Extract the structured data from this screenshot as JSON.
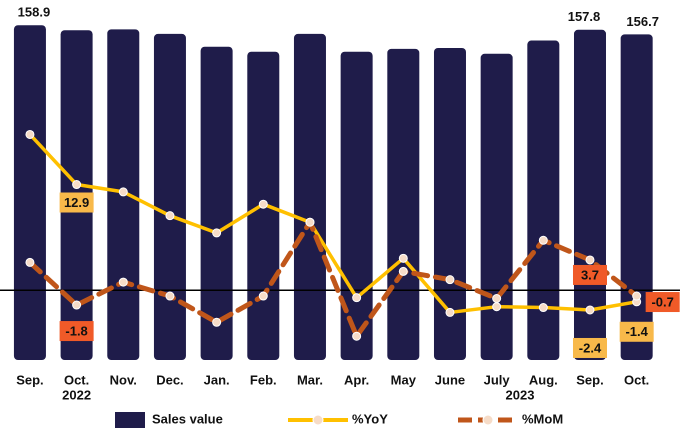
{
  "chart_data": {
    "type": "bar_line",
    "categories": [
      "Sep.",
      "Oct.",
      "Nov.",
      "Dec.",
      "Jan.",
      "Feb.",
      "Mar.",
      "Apr.",
      "May",
      "June",
      "July",
      "Aug.",
      "Sep.",
      "Oct."
    ],
    "annotations": [
      "2022",
      "2023"
    ],
    "ylim": [
      78,
      165
    ],
    "y2lim": [
      -8.5,
      35.4
    ],
    "series": [
      {
        "name": "Sales value",
        "color": "#1f1c4a",
        "values": [
          158.9,
          157.7,
          157.9,
          156.8,
          153.7,
          152.5,
          156.8,
          152.5,
          153.2,
          153.4,
          152.0,
          155.2,
          157.8,
          156.7
        ],
        "value_labels": [
          "158.9",
          null,
          null,
          null,
          null,
          null,
          null,
          null,
          null,
          null,
          null,
          null,
          "157.8",
          "156.7"
        ]
      },
      {
        "name": "%YoY",
        "color": "#ffc000",
        "axis": "y2",
        "values": [
          19.0,
          12.9,
          12.0,
          9.1,
          7.0,
          10.5,
          8.3,
          -0.9,
          3.9,
          -2.7,
          -2.0,
          -2.1,
          -2.4,
          -1.4
        ],
        "value_labels": [
          null,
          "12.9",
          null,
          null,
          null,
          null,
          null,
          null,
          null,
          null,
          null,
          null,
          "-2.4",
          "-1.4"
        ]
      },
      {
        "name": "%MoM",
        "color": "#c0561a",
        "axis": "y2",
        "values": [
          3.4,
          -1.8,
          1.0,
          -0.7,
          -3.9,
          -0.7,
          8.3,
          -5.6,
          2.3,
          1.3,
          -1.0,
          6.1,
          3.7,
          -0.7
        ],
        "value_labels": [
          null,
          "-1.8",
          null,
          null,
          null,
          null,
          null,
          null,
          null,
          null,
          null,
          null,
          "3.7",
          "-0.7"
        ]
      }
    ]
  }
}
